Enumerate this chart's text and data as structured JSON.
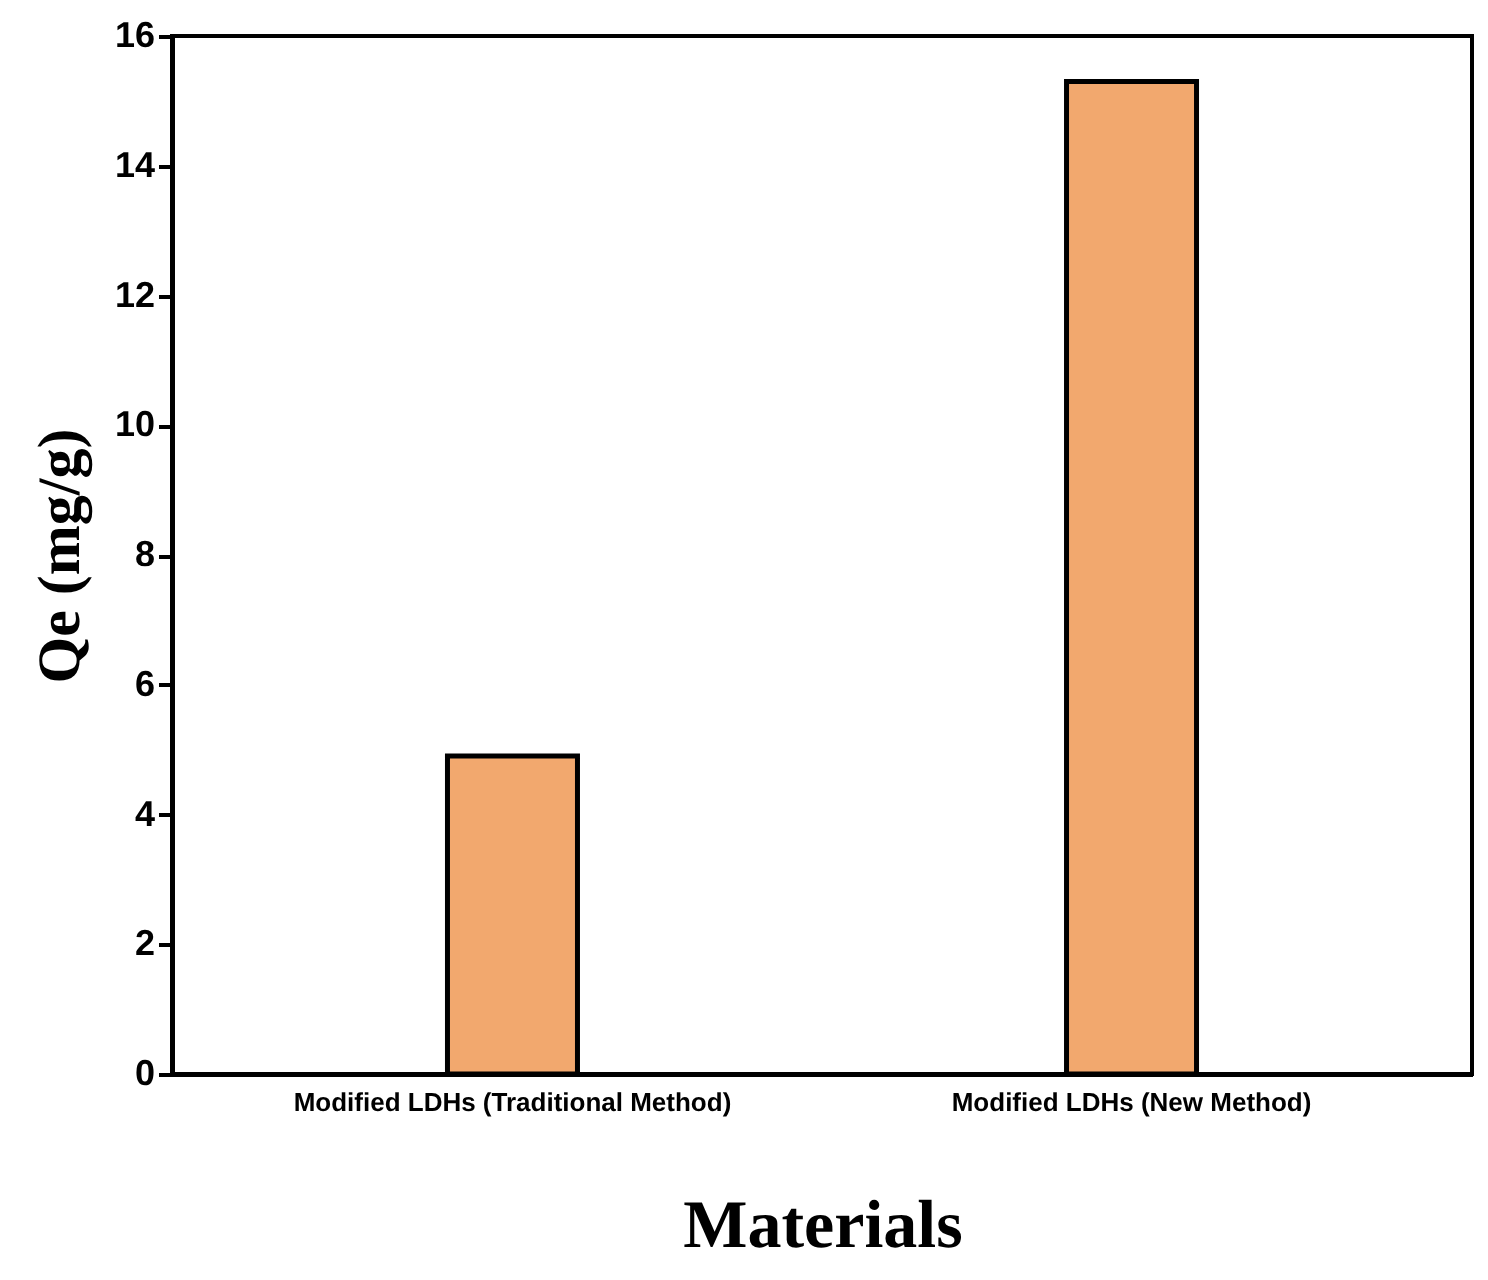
{
  "chart_data": {
    "type": "bar",
    "xlabel": "Materials",
    "ylabel": "Qe (mg/g)",
    "categories": [
      "Modified LDHs (Traditional Method)",
      "Modified LDHs (New Method)"
    ],
    "values": [
      4.9,
      15.3
    ],
    "color": "#f2a86e",
    "ylim": [
      0,
      16
    ],
    "yticks": [
      0,
      2,
      4,
      6,
      8,
      10,
      12,
      14,
      16
    ],
    "grid": false
  }
}
